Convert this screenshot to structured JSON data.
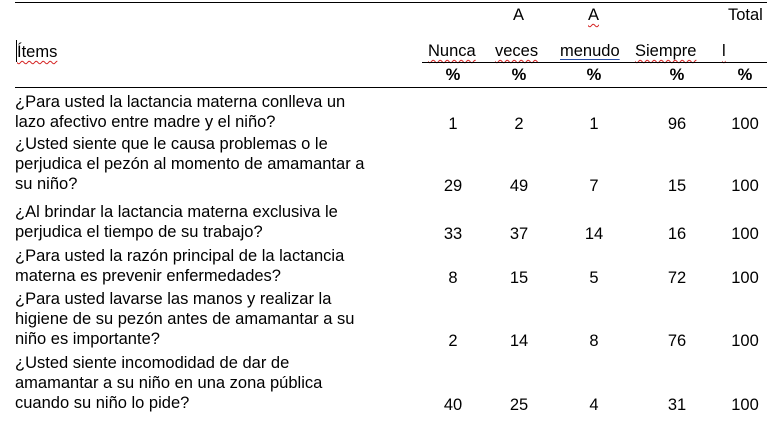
{
  "header": {
    "items_label": "Ítems",
    "col_nunca": "Nunca",
    "col_aveces_top": "A",
    "col_aveces_bottom": "veces",
    "col_amenudo_top": "A",
    "col_amenudo_bottom": "menudo",
    "col_siempre": "Siempre",
    "col_total_top": "Total",
    "col_total_bottom": "l",
    "unit": "%"
  },
  "rows": [
    {
      "lines": [
        "¿Para usted la lactancia materna conlleva un",
        "lazo afectivo entre madre y el niño?"
      ],
      "nunca": "1",
      "aveces": "2",
      "amenudo": "1",
      "siempre": "96",
      "total": "100"
    },
    {
      "lines": [
        "¿Usted siente que le causa problemas o le",
        "perjudica el pezón al momento de amamantar a",
        "su niño?"
      ],
      "nunca": "29",
      "aveces": "49",
      "amenudo": "7",
      "siempre": "15",
      "total": "100"
    },
    {
      "lines": [
        "¿Al brindar la lactancia materna exclusiva le",
        "perjudica el tiempo de su trabajo?"
      ],
      "nunca": "33",
      "aveces": "37",
      "amenudo": "14",
      "siempre": "16",
      "total": "100"
    },
    {
      "lines": [
        "¿Para usted la razón principal de la lactancia",
        "materna es prevenir enfermedades?"
      ],
      "nunca": "8",
      "aveces": "15",
      "amenudo": "5",
      "siempre": "72",
      "total": "100"
    },
    {
      "lines": [
        "¿Para usted lavarse las manos y realizar la",
        "higiene de su pezón antes de amamantar a su",
        "niño es importante?"
      ],
      "nunca": "2",
      "aveces": "14",
      "amenudo": "8",
      "siempre": "76",
      "total": "100"
    },
    {
      "lines": [
        "¿Usted siente incomodidad de dar de",
        "amamantar a su niño en una zona pública",
        "cuando su niño lo pide?"
      ],
      "nunca": "40",
      "aveces": "25",
      "amenudo": "4",
      "siempre": "31",
      "total": "100"
    }
  ]
}
